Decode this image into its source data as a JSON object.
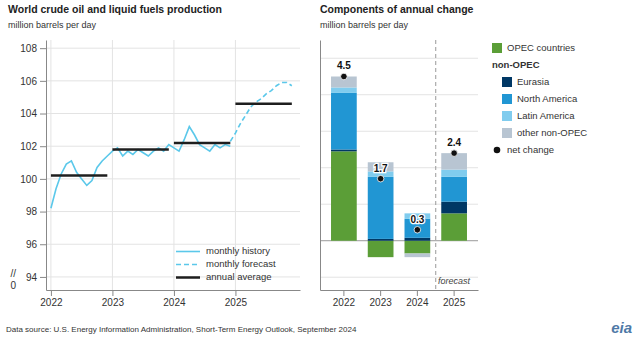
{
  "chart_data": [
    {
      "type": "line",
      "title": "World crude oil and liquid fuels production",
      "ylabel": "million barrels per day",
      "xlim": [
        2021.92,
        2026.05
      ],
      "xticks": [
        2022,
        2023,
        2024,
        2025
      ],
      "ylim": [
        93.2,
        108.5
      ],
      "yticks": [
        94,
        96,
        98,
        100,
        102,
        104,
        106,
        108
      ],
      "grid": true,
      "legend": "bottom-right",
      "annotations": [
        "//",
        "0"
      ],
      "series": [
        {
          "name": "monthly history",
          "color": "#5bc8ea",
          "line_style": "solid",
          "x": [
            2022.0,
            2022.083,
            2022.167,
            2022.25,
            2022.333,
            2022.417,
            2022.5,
            2022.583,
            2022.667,
            2022.75,
            2022.833,
            2022.917,
            2023.0,
            2023.083,
            2023.167,
            2023.25,
            2023.333,
            2023.417,
            2023.5,
            2023.583,
            2023.667,
            2023.75,
            2023.833,
            2023.917,
            2024.0,
            2024.083,
            2024.167,
            2024.25,
            2024.333,
            2024.417,
            2024.5,
            2024.583,
            2024.667,
            2024.75,
            2024.833,
            2024.917
          ],
          "values": [
            98.2,
            99.4,
            100.3,
            100.9,
            101.1,
            100.4,
            100.0,
            99.6,
            99.9,
            100.7,
            101.1,
            101.4,
            101.7,
            101.9,
            101.4,
            101.7,
            101.5,
            101.8,
            101.6,
            101.4,
            101.7,
            101.9,
            101.7,
            102.1,
            101.9,
            101.7,
            102.4,
            103.2,
            102.7,
            102.1,
            101.9,
            101.7,
            102.1,
            101.9,
            102.1,
            102.0
          ]
        },
        {
          "name": "monthly forecast",
          "color": "#5bc8ea",
          "line_style": "dashed",
          "x": [
            2024.917,
            2025.0,
            2025.083,
            2025.167,
            2025.25,
            2025.333,
            2025.417,
            2025.5,
            2025.583,
            2025.667,
            2025.75,
            2025.833,
            2025.917
          ],
          "values": [
            102.3,
            102.8,
            103.4,
            103.9,
            104.4,
            104.7,
            104.9,
            105.2,
            105.4,
            105.7,
            105.9,
            105.9,
            105.7
          ]
        },
        {
          "name": "annual average",
          "type": "segment",
          "color": "#1e1e1e",
          "line_style": "solid",
          "x_start": [
            2022.0,
            2023.0,
            2024.0,
            2025.0
          ],
          "x_end": [
            2022.917,
            2023.917,
            2024.917,
            2025.917
          ],
          "values": [
            100.2,
            101.8,
            102.2,
            104.6
          ]
        }
      ]
    },
    {
      "type": "bar",
      "stacked": true,
      "title": "Components of annual change",
      "ylabel": "million barrels per day",
      "categories": [
        "2022",
        "2023",
        "2024",
        "2025"
      ],
      "ylim": [
        -1.35,
        5.5
      ],
      "yticks": [
        -1,
        0,
        1,
        2,
        3,
        4,
        5
      ],
      "grid": true,
      "tick_labels": "x",
      "legend": "right",
      "annotations": [
        {
          "text": "forecast",
          "x": "2025"
        }
      ],
      "series": [
        {
          "name": "OPEC countries",
          "color": "#5b9e37",
          "values": [
            2.45,
            -0.45,
            -0.35,
            0.75
          ]
        },
        {
          "name": "Eurasia",
          "group": "non-OPEC",
          "color": "#003865",
          "values": [
            0.05,
            0.05,
            0.08,
            0.32
          ]
        },
        {
          "name": "North America",
          "group": "non-OPEC",
          "color": "#2196d3",
          "values": [
            1.55,
            1.7,
            0.52,
            0.68
          ]
        },
        {
          "name": "Latin America",
          "group": "non-OPEC",
          "color": "#80ccee",
          "values": [
            0.15,
            0.15,
            0.15,
            0.2
          ]
        },
        {
          "name": "other non-OPEC",
          "group": "non-OPEC",
          "color": "#b8c5d2",
          "values": [
            0.3,
            0.25,
            -0.1,
            0.45
          ]
        },
        {
          "name": "net change",
          "type": "scatter",
          "marker": "circle",
          "color": "#111111",
          "data_labels": true,
          "values": [
            4.5,
            1.7,
            0.3,
            2.4
          ]
        }
      ]
    }
  ],
  "footer": "Data source: U.S. Energy Information Administration, Short-Term Energy Outlook, September 2024",
  "logo": "eia"
}
